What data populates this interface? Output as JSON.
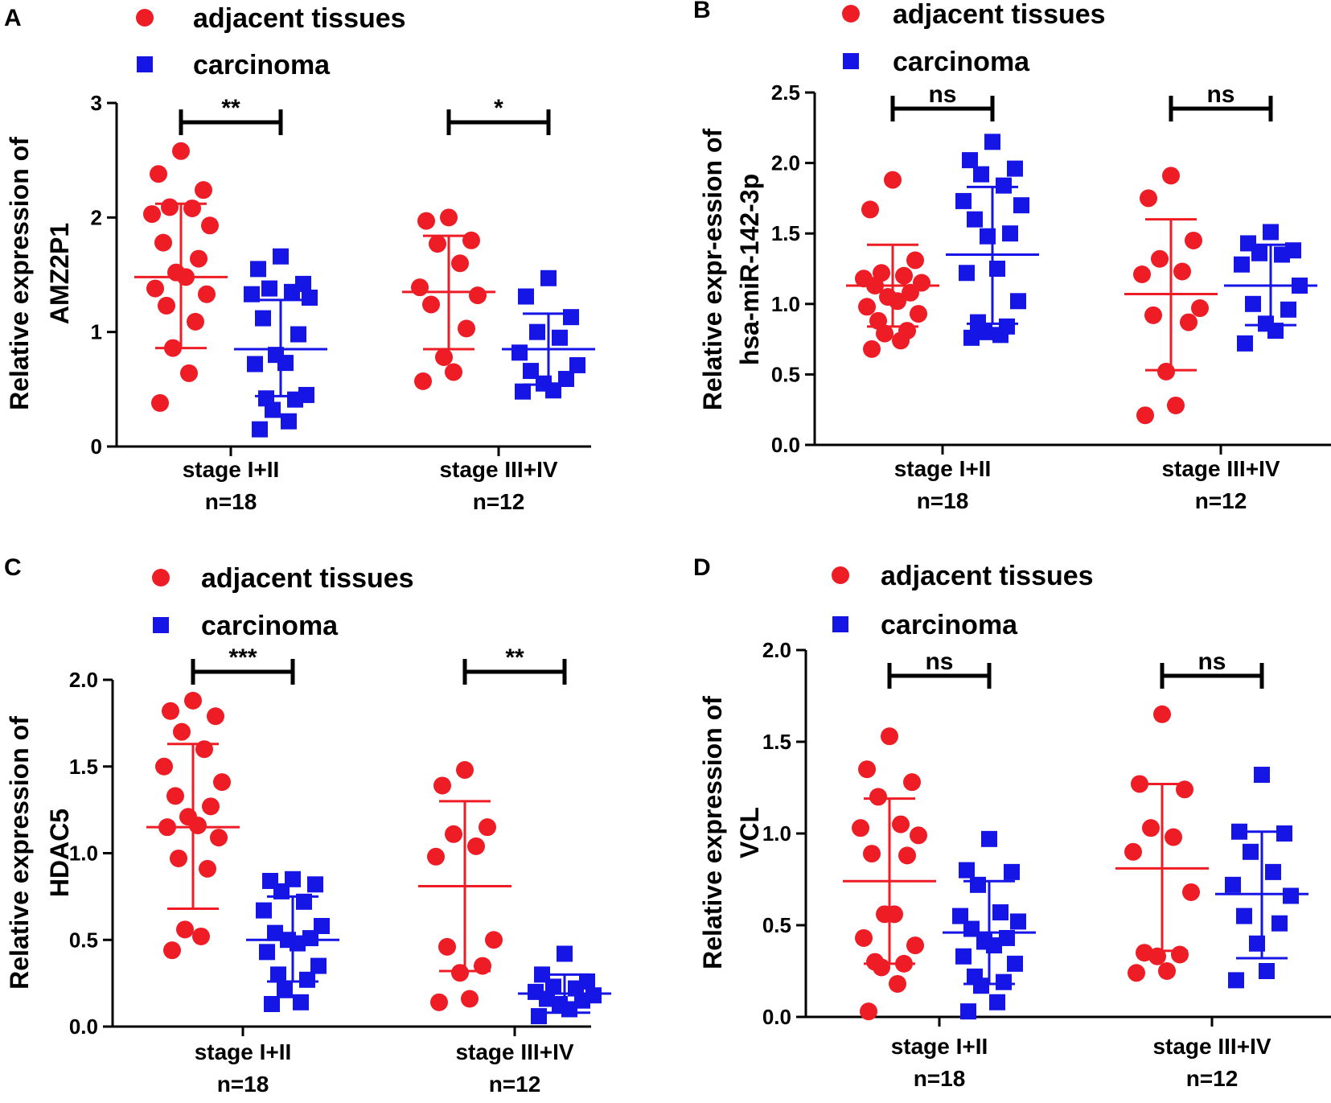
{
  "colors": {
    "adjacent": "#ee1c25",
    "carcinoma": "#1515e6",
    "axis": "#000000"
  },
  "legend": {
    "adjacent": "adjacent tissues",
    "carcinoma": "carcinoma"
  },
  "chart_data": [
    {
      "panel": "A",
      "type": "scatter",
      "ylabel_lines": [
        "Relative expression of",
        "AMZ2P1"
      ],
      "ylim": [
        0,
        3
      ],
      "yticks": [
        "0",
        "1",
        "2",
        "3"
      ],
      "yticks_values": [
        0,
        1,
        2,
        3
      ],
      "groups": [
        {
          "label": "stage I+II",
          "n": "n=18",
          "significance": "**",
          "adjacent": {
            "mean": 1.48,
            "sd_low": 0.86,
            "sd_high": 2.12,
            "values": [
              2.58,
              2.38,
              2.24,
              2.09,
              2.08,
              2.03,
              1.93,
              1.78,
              1.64,
              1.52,
              1.48,
              1.38,
              1.33,
              1.23,
              1.09,
              0.86,
              0.64,
              0.38
            ]
          },
          "carcinoma": {
            "mean": 0.85,
            "sd_low": 0.44,
            "sd_high": 1.28,
            "values": [
              1.66,
              1.55,
              1.42,
              1.38,
              1.35,
              1.33,
              1.3,
              1.12,
              0.98,
              0.8,
              0.73,
              0.72,
              0.45,
              0.42,
              0.41,
              0.32,
              0.22,
              0.15
            ]
          }
        },
        {
          "label": "stage III+IV",
          "n": "n=12",
          "significance": "*",
          "adjacent": {
            "mean": 1.35,
            "sd_low": 0.85,
            "sd_high": 1.84,
            "values": [
              2.0,
              1.97,
              1.8,
              1.77,
              1.6,
              1.39,
              1.32,
              1.24,
              1.03,
              0.78,
              0.65,
              0.57
            ]
          },
          "carcinoma": {
            "mean": 0.85,
            "sd_low": 0.54,
            "sd_high": 1.16,
            "values": [
              1.47,
              1.31,
              1.13,
              1.0,
              0.95,
              0.82,
              0.71,
              0.66,
              0.59,
              0.55,
              0.49,
              0.48
            ]
          }
        }
      ]
    },
    {
      "panel": "B",
      "type": "scatter",
      "ylabel_lines": [
        "Relative expr-ession of",
        "hsa-miR-142-3p"
      ],
      "ylim": [
        0,
        2.5
      ],
      "yticks": [
        "0.0",
        "0.5",
        "1.0",
        "1.5",
        "2.0",
        "2.5"
      ],
      "yticks_values": [
        0,
        0.5,
        1.0,
        1.5,
        2.0,
        2.5
      ],
      "groups": [
        {
          "label": "stage I+II",
          "n": "n=18",
          "significance": "ns",
          "adjacent": {
            "mean": 1.13,
            "sd_low": 0.84,
            "sd_high": 1.42,
            "values": [
              1.88,
              1.67,
              1.31,
              1.22,
              1.2,
              1.18,
              1.15,
              1.13,
              1.08,
              1.05,
              1.02,
              0.98,
              0.93,
              0.88,
              0.81,
              0.79,
              0.74,
              0.68
            ]
          },
          "carcinoma": {
            "mean": 1.35,
            "sd_low": 0.86,
            "sd_high": 1.83,
            "values": [
              2.15,
              2.02,
              1.96,
              1.92,
              1.84,
              1.73,
              1.7,
              1.6,
              1.5,
              1.48,
              1.25,
              1.22,
              1.02,
              0.87,
              0.84,
              0.8,
              0.78,
              0.76
            ]
          }
        },
        {
          "label": "stage III+IV",
          "n": "n=12",
          "significance": "ns",
          "adjacent": {
            "mean": 1.07,
            "sd_low": 0.53,
            "sd_high": 1.6,
            "values": [
              1.91,
              1.75,
              1.45,
              1.32,
              1.23,
              1.21,
              0.97,
              0.92,
              0.87,
              0.52,
              0.28,
              0.21
            ]
          },
          "carcinoma": {
            "mean": 1.13,
            "sd_low": 0.85,
            "sd_high": 1.42,
            "values": [
              1.51,
              1.43,
              1.38,
              1.36,
              1.35,
              1.28,
              1.13,
              1.0,
              0.96,
              0.86,
              0.81,
              0.72
            ]
          }
        }
      ]
    },
    {
      "panel": "C",
      "type": "scatter",
      "ylabel_lines": [
        "Relative expression of",
        "HDAC5"
      ],
      "ylim": [
        0,
        2
      ],
      "yticks": [
        "0.0",
        "0.5",
        "1.0",
        "1.5",
        "2.0"
      ],
      "yticks_values": [
        0,
        0.5,
        1.0,
        1.5,
        2.0
      ],
      "groups": [
        {
          "label": "stage I+II",
          "n": "n=18",
          "significance": "***",
          "adjacent": {
            "mean": 1.15,
            "sd_low": 0.68,
            "sd_high": 1.63,
            "values": [
              1.88,
              1.82,
              1.79,
              1.7,
              1.6,
              1.5,
              1.41,
              1.33,
              1.27,
              1.21,
              1.16,
              1.15,
              1.09,
              0.97,
              0.91,
              0.56,
              0.52,
              0.44
            ]
          },
          "carcinoma": {
            "mean": 0.5,
            "sd_low": 0.26,
            "sd_high": 0.75,
            "values": [
              0.85,
              0.84,
              0.82,
              0.78,
              0.72,
              0.67,
              0.58,
              0.54,
              0.51,
              0.5,
              0.48,
              0.43,
              0.35,
              0.3,
              0.27,
              0.21,
              0.14,
              0.13
            ]
          }
        },
        {
          "label": "stage III+IV",
          "n": "n=12",
          "significance": "**",
          "adjacent": {
            "mean": 0.81,
            "sd_low": 0.32,
            "sd_high": 1.3,
            "values": [
              1.48,
              1.39,
              1.15,
              1.11,
              1.04,
              0.98,
              0.5,
              0.46,
              0.35,
              0.31,
              0.16,
              0.14
            ]
          },
          "carcinoma": {
            "mean": 0.19,
            "sd_low": 0.08,
            "sd_high": 0.3,
            "values": [
              0.42,
              0.3,
              0.26,
              0.23,
              0.22,
              0.2,
              0.18,
              0.16,
              0.15,
              0.13,
              0.1,
              0.06
            ]
          }
        }
      ]
    },
    {
      "panel": "D",
      "type": "scatter",
      "ylabel_lines": [
        "Relative expression of",
        "VCL"
      ],
      "ylim": [
        0,
        2
      ],
      "yticks": [
        "0.0",
        "0.5",
        "1.0",
        "1.5",
        "2.0"
      ],
      "yticks_values": [
        0,
        0.5,
        1.0,
        1.5,
        2.0
      ],
      "groups": [
        {
          "label": "stage I+II",
          "n": "n=18",
          "significance": "ns",
          "adjacent": {
            "mean": 0.74,
            "sd_low": 0.29,
            "sd_high": 1.19,
            "values": [
              1.53,
              1.35,
              1.28,
              1.2,
              1.05,
              1.03,
              0.99,
              0.89,
              0.88,
              0.56,
              0.56,
              0.43,
              0.39,
              0.3,
              0.29,
              0.27,
              0.18,
              0.03
            ]
          },
          "carcinoma": {
            "mean": 0.46,
            "sd_low": 0.18,
            "sd_high": 0.74,
            "values": [
              0.97,
              0.8,
              0.79,
              0.72,
              0.57,
              0.55,
              0.52,
              0.48,
              0.43,
              0.41,
              0.39,
              0.33,
              0.29,
              0.22,
              0.19,
              0.17,
              0.08,
              0.03
            ]
          }
        },
        {
          "label": "stage III+IV",
          "n": "n=12",
          "significance": "ns",
          "adjacent": {
            "mean": 0.81,
            "sd_low": 0.36,
            "sd_high": 1.27,
            "values": [
              1.65,
              1.27,
              1.24,
              1.03,
              0.98,
              0.9,
              0.68,
              0.35,
              0.34,
              0.33,
              0.25,
              0.24
            ]
          },
          "carcinoma": {
            "mean": 0.67,
            "sd_low": 0.32,
            "sd_high": 1.01,
            "values": [
              1.32,
              1.01,
              1.0,
              0.9,
              0.79,
              0.72,
              0.66,
              0.55,
              0.51,
              0.4,
              0.25,
              0.2
            ]
          }
        }
      ]
    }
  ]
}
